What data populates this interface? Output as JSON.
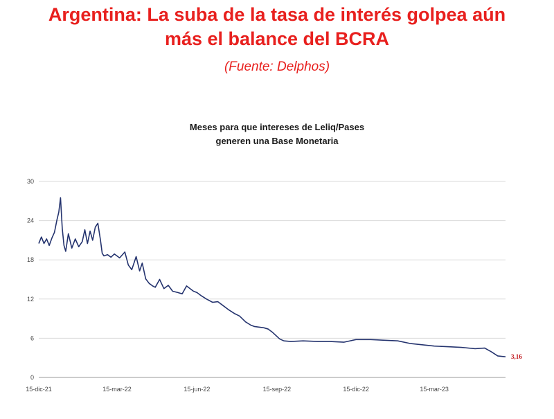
{
  "header": {
    "title_line1": "Argentina: La suba de la tasa de interés golpea aún",
    "title_line2": "más el balance del BCRA",
    "source": "(Fuente: Delphos)"
  },
  "colors": {
    "headline": "#e8201e",
    "series": "#24336e",
    "end_label": "#c0151b",
    "grid": "#d9d9d9"
  },
  "chart_data": {
    "type": "line",
    "title_line1": "Meses para que intereses de Leliq/Pases",
    "title_line2": "generen una Base Monetaria",
    "xlabel": "",
    "ylabel": "",
    "ylim": [
      0,
      30
    ],
    "yticks": [
      0,
      6,
      12,
      18,
      24,
      30
    ],
    "ytick_labels": [
      "0",
      "6",
      "12",
      "18",
      "24",
      "30"
    ],
    "grid": true,
    "xtick_labels": [
      "15-dic-21",
      "15-mar-22",
      "15-jun-22",
      "15-sep-22",
      "15-dic-22",
      "15-mar-23"
    ],
    "xtick_dates": [
      "2021-12-15",
      "2022-03-15",
      "2022-06-15",
      "2022-09-15",
      "2022-12-15",
      "2023-03-15"
    ],
    "x_range": [
      "2021-12-15",
      "2023-06-05"
    ],
    "end_label": "3,16",
    "series": [
      {
        "x": [
          "2021-12-15",
          "2021-12-18",
          "2021-12-21",
          "2021-12-24",
          "2021-12-27",
          "2021-12-30",
          "2022-01-02",
          "2022-01-05",
          "2022-01-07",
          "2022-01-09",
          "2022-01-11",
          "2022-01-13",
          "2022-01-15",
          "2022-01-18",
          "2022-01-22",
          "2022-01-26",
          "2022-01-30",
          "2022-02-03",
          "2022-02-06",
          "2022-02-09",
          "2022-02-12",
          "2022-02-15",
          "2022-02-18",
          "2022-02-21",
          "2022-02-24",
          "2022-02-26",
          "2022-02-28",
          "2022-03-04",
          "2022-03-08",
          "2022-03-12",
          "2022-03-18",
          "2022-03-24",
          "2022-03-28",
          "2022-04-01",
          "2022-04-06",
          "2022-04-10",
          "2022-04-13",
          "2022-04-17",
          "2022-04-21",
          "2022-04-25",
          "2022-04-28",
          "2022-05-03",
          "2022-05-08",
          "2022-05-13",
          "2022-05-18",
          "2022-05-24",
          "2022-05-29",
          "2022-06-03",
          "2022-06-08",
          "2022-06-11",
          "2022-06-15",
          "2022-06-20",
          "2022-06-26",
          "2022-07-03",
          "2022-07-09",
          "2022-07-15",
          "2022-07-21",
          "2022-07-28",
          "2022-08-03",
          "2022-08-10",
          "2022-08-16",
          "2022-08-20",
          "2022-08-26",
          "2022-08-31",
          "2022-09-05",
          "2022-09-10",
          "2022-09-14",
          "2022-09-18",
          "2022-09-23",
          "2022-10-01",
          "2022-10-15",
          "2022-11-01",
          "2022-11-15",
          "2022-12-01",
          "2022-12-15",
          "2023-01-01",
          "2023-01-15",
          "2023-02-01",
          "2023-02-15",
          "2023-03-01",
          "2023-03-15",
          "2023-04-01",
          "2023-04-15",
          "2023-05-01",
          "2023-05-12",
          "2023-05-20",
          "2023-05-27",
          "2023-06-05"
        ],
        "y": [
          20.5,
          21.5,
          20.5,
          21.2,
          20.2,
          21.3,
          22.2,
          24.2,
          25.3,
          27.5,
          22.8,
          20.2,
          19.3,
          22.0,
          19.8,
          21.2,
          20.0,
          20.8,
          22.6,
          20.5,
          22.4,
          21.0,
          23.0,
          23.6,
          21.0,
          19.0,
          18.6,
          18.8,
          18.4,
          18.9,
          18.3,
          19.2,
          17.2,
          16.5,
          18.5,
          16.3,
          17.5,
          15.1,
          14.4,
          14.0,
          13.8,
          15.0,
          13.6,
          14.1,
          13.2,
          13.0,
          12.8,
          14.0,
          13.5,
          13.2,
          13.0,
          12.5,
          12.0,
          11.5,
          11.6,
          11.0,
          10.4,
          9.8,
          9.4,
          8.5,
          8.0,
          7.8,
          7.7,
          7.6,
          7.4,
          6.9,
          6.4,
          5.9,
          5.6,
          5.5,
          5.6,
          5.5,
          5.5,
          5.4,
          5.8,
          5.8,
          5.7,
          5.6,
          5.2,
          5.0,
          4.8,
          4.7,
          4.6,
          4.4,
          4.5,
          3.9,
          3.3,
          3.16
        ]
      }
    ]
  }
}
